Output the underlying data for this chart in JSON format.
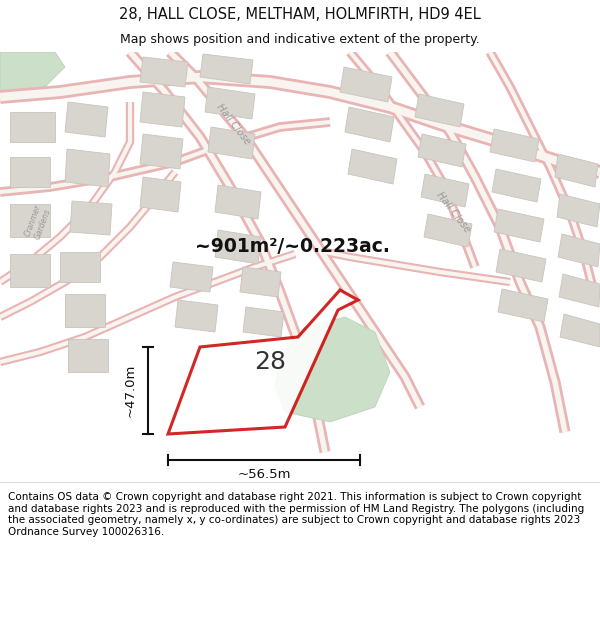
{
  "title_line1": "28, HALL CLOSE, MELTHAM, HOLMFIRTH, HD9 4EL",
  "title_line2": "Map shows position and indicative extent of the property.",
  "area_text": "~901m²/~0.223ac.",
  "width_label": "~56.5m",
  "height_label": "~47.0m",
  "number_label": "28",
  "footer_text": "Contains OS data © Crown copyright and database right 2021. This information is subject to Crown copyright and database rights 2023 and is reproduced with the permission of HM Land Registry. The polygons (including the associated geometry, namely x, y co-ordinates) are subject to Crown copyright and database rights 2023 Ordnance Survey 100026316.",
  "map_bg": "#f2eeea",
  "road_stroke": "#e8b4b4",
  "road_fill": "#f8f4f0",
  "building_fill": "#d8d4ce",
  "building_stroke": "#c8c4be",
  "green_fill": "#ccdfc8",
  "green_stroke": "#b8d0b4",
  "property_stroke": "#cc0000",
  "property_fill": "#ffffff",
  "title_bg": "#ffffff",
  "footer_bg": "#ffffff",
  "dim_color": "#111111",
  "label_color": "#333333",
  "road_label_color": "#999999"
}
